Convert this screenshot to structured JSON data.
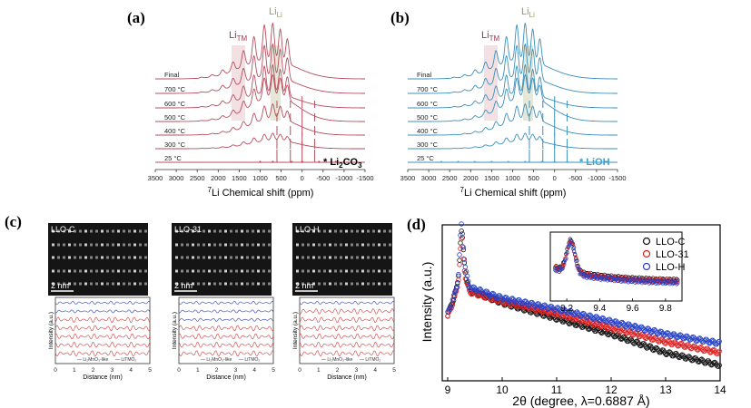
{
  "panel_a": {
    "label": "(a)",
    "li_tm": "Li",
    "li_tm_sub": "TM",
    "li_li": "Li",
    "li_li_sub": "Li",
    "temps": [
      "Final",
      "700 °C",
      "600 °C",
      "500 °C",
      "400 °C",
      "300 °C",
      "25 °C"
    ],
    "marker_star": "*",
    "marker_base": "Li",
    "marker_sub1": "2",
    "marker_mid": "CO",
    "marker_sub2": "3",
    "color": "#b74d5e",
    "marker_color": "#c0242f",
    "x_ticks": [
      "3500",
      "3000",
      "2500",
      "2000",
      "1500",
      "1000",
      "500",
      "0",
      "-500",
      "-1000",
      "-1500"
    ],
    "x_title_sup": "7",
    "x_title": "Li Chemical shift (ppm)"
  },
  "panel_b": {
    "label": "(b)",
    "li_tm": "Li",
    "li_tm_sub": "TM",
    "li_li": "Li",
    "li_li_sub": "Li",
    "temps": [
      "Final",
      "700 °C",
      "600 °C",
      "500 °C",
      "400 °C",
      "300 °C",
      "25 °C"
    ],
    "marker_text": "* LiOH",
    "color": "#3a8fbd",
    "marker_color": "#3aa3c8",
    "x_ticks": [
      "3500",
      "3000",
      "2500",
      "2000",
      "1500",
      "1000",
      "500",
      "0",
      "-500",
      "-1000",
      "-1500"
    ],
    "x_title_sup": "7",
    "x_title": "Li Chemical shift (ppm)"
  },
  "panel_c": {
    "label": "(c)",
    "images": [
      {
        "name": "LLO-C",
        "scale": "2 nm"
      },
      {
        "name": "LLO-31",
        "scale": "2 nm"
      },
      {
        "name": "LLO-H",
        "scale": "2 nm"
      }
    ],
    "ylabel": "Intensity (a.u.)",
    "xlabel": "Distance (nm)",
    "x_ticks": [
      "0",
      "1",
      "2",
      "3",
      "4",
      "5"
    ],
    "legend_1": "Li₂MnO₃-like",
    "legend_2": "LiTMO₂",
    "color_1": "#2f3fb0",
    "color_2": "#d63a3a"
  },
  "panel_d": {
    "label": "(d)",
    "ylabel": "Intensity (a.u.)",
    "xlabel": "2θ (degree, λ=0.6887 Å)",
    "x_ticks": [
      "9",
      "10",
      "11",
      "12",
      "13",
      "14"
    ],
    "inset_ticks": [
      "9.2",
      "9.4",
      "9.6",
      "9.8"
    ]
  },
  "chart_data": [
    {
      "type": "line",
      "title": "(a)",
      "xlabel": "7Li Chemical shift (ppm)",
      "ylabel": "",
      "xlim": [
        3500,
        -1500
      ],
      "series": [
        {
          "name": "Final"
        },
        {
          "name": "700 °C"
        },
        {
          "name": "600 °C"
        },
        {
          "name": "500 °C"
        },
        {
          "name": "400 °C"
        },
        {
          "name": "300 °C"
        },
        {
          "name": "25 °C"
        }
      ],
      "annotations": [
        "LiTM",
        "LiLi",
        "* Li2CO3"
      ]
    },
    {
      "type": "line",
      "title": "(b)",
      "xlabel": "7Li Chemical shift (ppm)",
      "ylabel": "",
      "xlim": [
        3500,
        -1500
      ],
      "series": [
        {
          "name": "Final"
        },
        {
          "name": "700 °C"
        },
        {
          "name": "600 °C"
        },
        {
          "name": "500 °C"
        },
        {
          "name": "400 °C"
        },
        {
          "name": "300 °C"
        },
        {
          "name": "25 °C"
        }
      ],
      "annotations": [
        "LiTM",
        "LiLi",
        "* LiOH"
      ]
    },
    {
      "type": "scatter",
      "title": "(d)",
      "xlabel": "2θ (degree, λ=0.6887 Å)",
      "ylabel": "Intensity (a.u.)",
      "xlim": [
        8.9,
        14
      ],
      "series": [
        {
          "name": "LLO-C",
          "color": "#111111",
          "x": [
            9.0,
            9.2,
            9.25,
            9.4,
            10,
            11,
            12,
            13,
            14
          ],
          "y": [
            0.42,
            0.62,
            0.78,
            0.58,
            0.5,
            0.4,
            0.3,
            0.18,
            0.1
          ]
        },
        {
          "name": "LLO-31",
          "color": "#e02020",
          "x": [
            9.0,
            9.2,
            9.25,
            9.4,
            10,
            11,
            12,
            13,
            14
          ],
          "y": [
            0.41,
            0.6,
            0.72,
            0.57,
            0.51,
            0.43,
            0.34,
            0.25,
            0.18
          ]
        },
        {
          "name": "LLO-H",
          "color": "#2540c8",
          "x": [
            9.0,
            9.2,
            9.25,
            9.4,
            10,
            11,
            12,
            13,
            14
          ],
          "y": [
            0.43,
            0.63,
            0.82,
            0.6,
            0.53,
            0.46,
            0.38,
            0.3,
            0.24
          ]
        }
      ],
      "inset": {
        "xlim": [
          9.1,
          9.9
        ]
      }
    }
  ]
}
